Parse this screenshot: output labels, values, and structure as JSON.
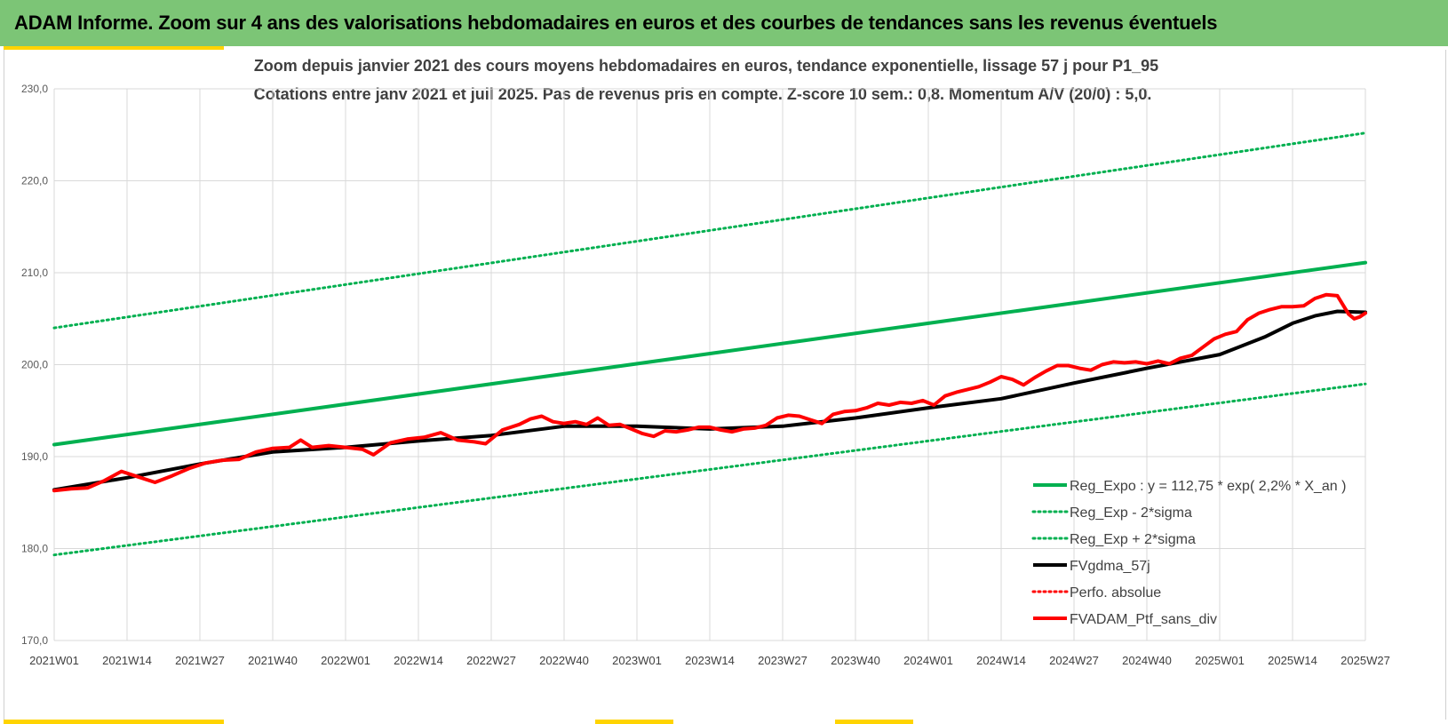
{
  "header": {
    "title": "ADAM Informe. Zoom sur 4 ans des valorisations hebdomadaires en euros et des courbes de tendances sans les revenus éventuels"
  },
  "colors": {
    "banner": "#7cc576",
    "accent_yellow": "#ffd400",
    "trend_green": "#00b050",
    "smooth_black": "#000000",
    "perf_red": "#ff0000"
  },
  "chart_data": {
    "type": "line",
    "title_line1": "Zoom depuis janvier 2021 des cours moyens hebdomadaires  en euros, tendance exponentielle, lissage 57 j pour P1_95",
    "title_line2": "Cotations entre janv 2021 et juil 2025. Pas de revenus pris en compte. Z-score 10 sem.: 0,8. Momentum A/V (20/0) : 5,0.",
    "ylim": [
      170,
      230
    ],
    "yticks": [
      "170,0",
      "180,0",
      "190,0",
      "200,0",
      "210,0",
      "220,0",
      "230,0"
    ],
    "grid": true,
    "legend_position": "bottom-right",
    "x_labels": [
      "2021W01",
      "2021W14",
      "2021W27",
      "2021W40",
      "2022W01",
      "2022W14",
      "2022W27",
      "2022W40",
      "2023W01",
      "2023W14",
      "2023W27",
      "2023W40",
      "2024W01",
      "2024W14",
      "2024W27",
      "2024W40",
      "2025W01",
      "2025W14",
      "2025W27"
    ],
    "series": [
      {
        "name": "Reg_Expo : y = 112,75 * exp( 2,2% *  X_an )",
        "style": "solid",
        "color": "#00b050",
        "width": 4,
        "points": [
          [
            0,
            191.3
          ],
          [
            234,
            211.1
          ]
        ]
      },
      {
        "name": "Reg_Exp - 2*sigma",
        "style": "dotted",
        "color": "#00b050",
        "width": 3,
        "points": [
          [
            0,
            179.3
          ],
          [
            234,
            197.9
          ]
        ]
      },
      {
        "name": "Reg_Exp + 2*sigma",
        "style": "dotted",
        "color": "#00b050",
        "width": 3,
        "points": [
          [
            0,
            204.0
          ],
          [
            234,
            225.2
          ]
        ]
      },
      {
        "name": "FVgdma_57j",
        "style": "solid",
        "color": "#000000",
        "width": 4,
        "points": [
          [
            0,
            186.4
          ],
          [
            13,
            187.7
          ],
          [
            26,
            189.2
          ],
          [
            39,
            190.5
          ],
          [
            52,
            191.0
          ],
          [
            65,
            191.7
          ],
          [
            78,
            192.3
          ],
          [
            91,
            193.3
          ],
          [
            104,
            193.3
          ],
          [
            117,
            193.0
          ],
          [
            130,
            193.3
          ],
          [
            143,
            194.2
          ],
          [
            156,
            195.3
          ],
          [
            169,
            196.3
          ],
          [
            182,
            198.0
          ],
          [
            195,
            199.6
          ],
          [
            208,
            201.1
          ],
          [
            216,
            203.0
          ],
          [
            221,
            204.5
          ],
          [
            225,
            205.3
          ],
          [
            229,
            205.8
          ],
          [
            234,
            205.7
          ]
        ]
      },
      {
        "name": "Perfo. absolue",
        "style": "dotted",
        "color": "#ff0000",
        "width": 3,
        "points": []
      },
      {
        "name": "FVADAM_Ptf_sans_div",
        "style": "solid",
        "color": "#ff0000",
        "width": 4,
        "points": [
          [
            0,
            186.3
          ],
          [
            3,
            186.5
          ],
          [
            6,
            186.6
          ],
          [
            9,
            187.4
          ],
          [
            12,
            188.4
          ],
          [
            15,
            187.8
          ],
          [
            18,
            187.2
          ],
          [
            21,
            187.9
          ],
          [
            24,
            188.7
          ],
          [
            27,
            189.3
          ],
          [
            30,
            189.6
          ],
          [
            33,
            189.7
          ],
          [
            36,
            190.5
          ],
          [
            39,
            190.9
          ],
          [
            42,
            191.0
          ],
          [
            44,
            191.8
          ],
          [
            46,
            191.0
          ],
          [
            49,
            191.2
          ],
          [
            52,
            191.0
          ],
          [
            55,
            190.8
          ],
          [
            57,
            190.2
          ],
          [
            60,
            191.5
          ],
          [
            63,
            191.9
          ],
          [
            66,
            192.1
          ],
          [
            69,
            192.6
          ],
          [
            72,
            191.8
          ],
          [
            75,
            191.6
          ],
          [
            77,
            191.4
          ],
          [
            80,
            192.9
          ],
          [
            83,
            193.5
          ],
          [
            85,
            194.1
          ],
          [
            87,
            194.4
          ],
          [
            89,
            193.8
          ],
          [
            91,
            193.6
          ],
          [
            93,
            193.8
          ],
          [
            95,
            193.5
          ],
          [
            97,
            194.2
          ],
          [
            99,
            193.4
          ],
          [
            101,
            193.5
          ],
          [
            103,
            193.0
          ],
          [
            105,
            192.5
          ],
          [
            107,
            192.2
          ],
          [
            109,
            192.8
          ],
          [
            111,
            192.7
          ],
          [
            113,
            192.9
          ],
          [
            115,
            193.2
          ],
          [
            117,
            193.2
          ],
          [
            119,
            192.9
          ],
          [
            121,
            192.7
          ],
          [
            123,
            193.0
          ],
          [
            125,
            193.1
          ],
          [
            127,
            193.4
          ],
          [
            129,
            194.2
          ],
          [
            131,
            194.5
          ],
          [
            133,
            194.4
          ],
          [
            135,
            194.0
          ],
          [
            137,
            193.6
          ],
          [
            139,
            194.6
          ],
          [
            141,
            194.9
          ],
          [
            143,
            195.0
          ],
          [
            145,
            195.3
          ],
          [
            147,
            195.8
          ],
          [
            149,
            195.6
          ],
          [
            151,
            195.9
          ],
          [
            153,
            195.8
          ],
          [
            155,
            196.1
          ],
          [
            157,
            195.6
          ],
          [
            159,
            196.6
          ],
          [
            161,
            197.0
          ],
          [
            163,
            197.3
          ],
          [
            165,
            197.6
          ],
          [
            167,
            198.1
          ],
          [
            169,
            198.7
          ],
          [
            171,
            198.4
          ],
          [
            173,
            197.8
          ],
          [
            175,
            198.6
          ],
          [
            177,
            199.3
          ],
          [
            179,
            199.9
          ],
          [
            181,
            199.9
          ],
          [
            183,
            199.6
          ],
          [
            185,
            199.4
          ],
          [
            187,
            200.0
          ],
          [
            189,
            200.3
          ],
          [
            191,
            200.2
          ],
          [
            193,
            200.3
          ],
          [
            195,
            200.1
          ],
          [
            197,
            200.4
          ],
          [
            199,
            200.1
          ],
          [
            201,
            200.7
          ],
          [
            203,
            201.0
          ],
          [
            205,
            201.9
          ],
          [
            207,
            202.8
          ],
          [
            209,
            203.3
          ],
          [
            211,
            203.6
          ],
          [
            213,
            204.9
          ],
          [
            215,
            205.6
          ],
          [
            217,
            206.0
          ],
          [
            219,
            206.3
          ],
          [
            221,
            206.3
          ],
          [
            223,
            206.4
          ],
          [
            225,
            207.2
          ],
          [
            227,
            207.6
          ],
          [
            229,
            207.5
          ],
          [
            231,
            205.5
          ],
          [
            232,
            205.0
          ],
          [
            233,
            205.2
          ],
          [
            234,
            205.6
          ]
        ]
      }
    ]
  }
}
